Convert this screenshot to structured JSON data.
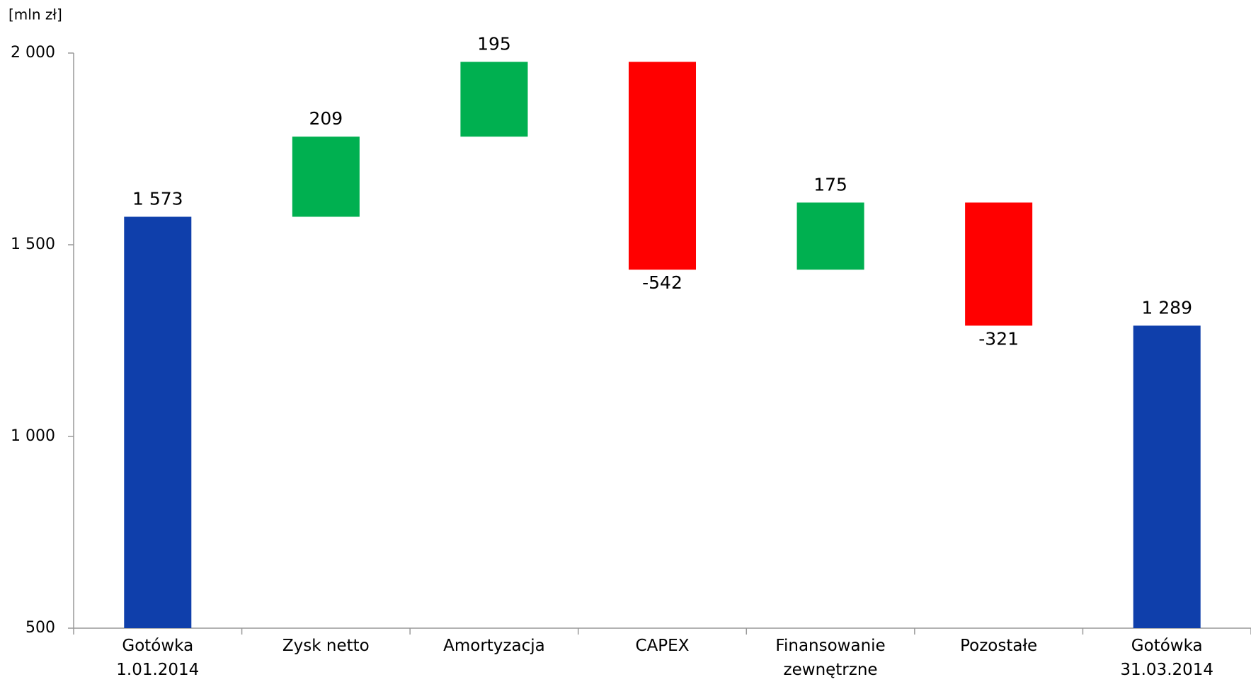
{
  "chart_data": {
    "type": "waterfall",
    "unit_label": "[mln zł]",
    "categories": [
      "Gotówka\n1.01.2014",
      "Zysk netto",
      "Amortyzacja",
      "CAPEX",
      "Finansowanie\nzewnętrzne",
      "Pozostałe",
      "Gotówka\n31.03.2014"
    ],
    "values": [
      1573,
      209,
      195,
      -542,
      175,
      -321,
      1289
    ],
    "value_labels": [
      "1 573",
      "209",
      "195",
      "-542",
      "175",
      "-321",
      "1 289"
    ],
    "measure": [
      "absolute",
      "relative",
      "relative",
      "relative",
      "relative",
      "relative",
      "absolute"
    ],
    "colors": [
      "#0f3fab",
      "#00b050",
      "#00b050",
      "#ff0000",
      "#00b050",
      "#ff0000",
      "#0f3fab"
    ],
    "ylim": [
      500,
      2000
    ],
    "yticks": [
      500,
      {
        "value": 1000,
        "label": "1 000"
      },
      {
        "value": 1500,
        "label": "1 500"
      },
      {
        "value": 2000,
        "label": "2 000"
      }
    ]
  }
}
